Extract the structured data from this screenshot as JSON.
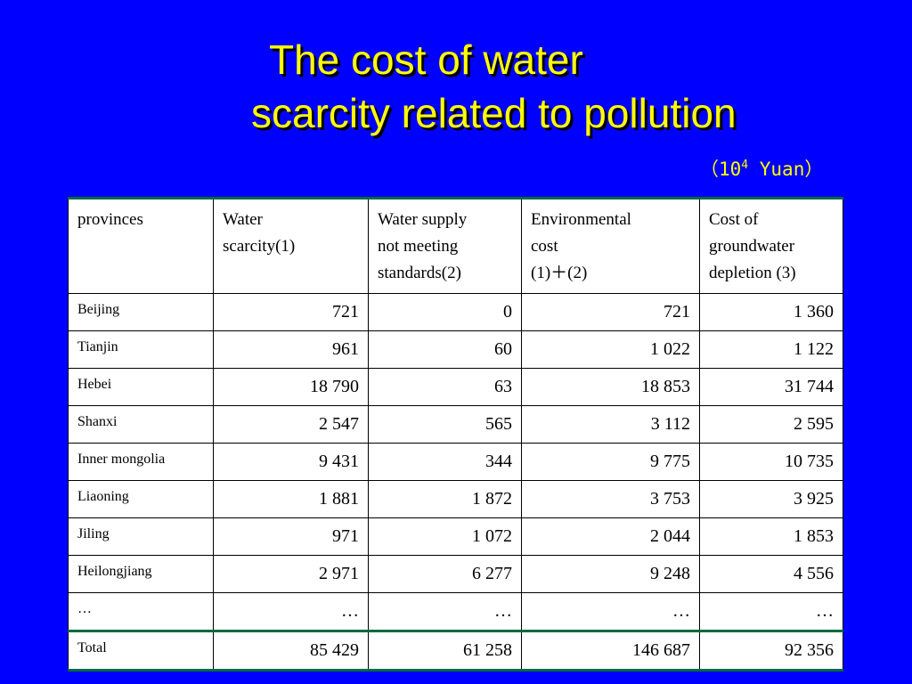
{
  "slide": {
    "title_line1": "The cost of water",
    "title_line2": "scarcity related to pollution",
    "unit_open": "（10",
    "unit_exp": "4",
    "unit_close": " Yuan）"
  },
  "table": {
    "headers": [
      [
        "provinces"
      ],
      [
        "Water",
        "scarcity(1)"
      ],
      [
        "Water supply",
        "not meeting",
        "standards(2)"
      ],
      [
        "Environmental",
        "cost",
        "(1)＋(2)"
      ],
      [
        "Cost of",
        "groundwater",
        "depletion (3)"
      ]
    ],
    "rows": [
      [
        "Beijing",
        "721",
        "0",
        "721",
        "1 360"
      ],
      [
        "Tianjin",
        "961",
        "60",
        "1 022",
        "1 122"
      ],
      [
        "Hebei",
        "18 790",
        "63",
        "18 853",
        "31 744"
      ],
      [
        "Shanxi",
        "2 547",
        "565",
        "3 112",
        "2 595"
      ],
      [
        "Inner mongolia",
        "9 431",
        "344",
        "9 775",
        "10 735"
      ],
      [
        "Liaoning",
        "1 881",
        "1 872",
        "3 753",
        "3 925"
      ],
      [
        "Jiling",
        "971",
        "1 072",
        "2 044",
        "1 853"
      ],
      [
        "Heilongjiang",
        "2 971",
        "6 277",
        "9 248",
        "4 556"
      ],
      [
        "…",
        "…",
        "…",
        "…",
        "…"
      ],
      [
        "Total",
        "85 429",
        "61 258",
        "146 687",
        "92 356"
      ]
    ]
  },
  "colors": {
    "background": "#0000ff",
    "title": "#ffff00",
    "table_background": "#ffffff",
    "table_rule": "#006b3c"
  }
}
